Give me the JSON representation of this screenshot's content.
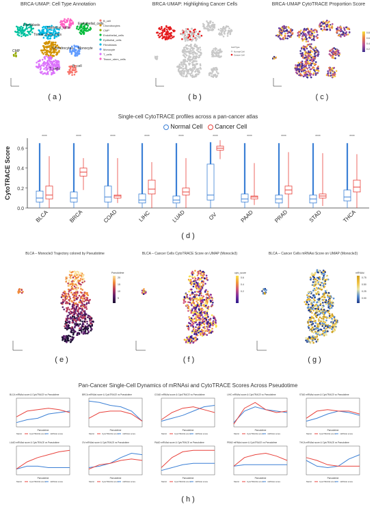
{
  "panel_a": {
    "title": "BRCA-UMAP: Cell Type Annotation",
    "label": "( a )",
    "cluster_labels": [
      "Fibroblasts",
      "Epithelial_cells",
      "Tissue_stem_cells",
      "Endothelial_cells",
      "Chondrocytes",
      "Monocyte",
      "T_cells",
      "B_cell",
      "CMP"
    ],
    "legend": [
      {
        "name": "B_cell",
        "color": "#f8766d"
      },
      {
        "name": "Chondrocytes",
        "color": "#d39200"
      },
      {
        "name": "CMP",
        "color": "#93aa00"
      },
      {
        "name": "Endothelial_cells",
        "color": "#00ba38"
      },
      {
        "name": "Epithelial_cells",
        "color": "#00c19f"
      },
      {
        "name": "Fibroblasts",
        "color": "#00b9e3"
      },
      {
        "name": "Monocyte",
        "color": "#619cff"
      },
      {
        "name": "T_cells",
        "color": "#db72fb"
      },
      {
        "name": "Tissue_stem_cells",
        "color": "#ff61c3"
      }
    ]
  },
  "panel_b": {
    "title": "BRCA-UMAP: Highlighting Cancer Cells",
    "label": "( b )",
    "legend_title": "Cell Type",
    "legend": [
      {
        "name": "Normal Cell",
        "color": "#cccccc"
      },
      {
        "name": "Cancer Cell",
        "color": "#e41a1c"
      }
    ]
  },
  "panel_c": {
    "title": "BRCA-UMAP CytoTRACE Proportion Score",
    "label": "( c )",
    "scale_ticks": [
      "0.8",
      "0.6",
      "0.4",
      "0.2"
    ]
  },
  "panel_d": {
    "title": "Single-cell CytoTRACE profiles across a pan-cancer atlas",
    "label": "( d )",
    "legend": [
      {
        "name": "Normal Cell",
        "color": "#3a7fd5"
      },
      {
        "name": "Cancer Cell",
        "color": "#e8413b"
      }
    ],
    "chart_data": {
      "type": "box",
      "ylabel": "CytoTRACE Score",
      "ylim": [
        0,
        0.7
      ],
      "yticks": [
        "0.0",
        "0.2",
        "0.4",
        "0.6"
      ],
      "categories": [
        "BLCA",
        "BRCA",
        "COAD",
        "LIHC",
        "LUAD",
        "OV",
        "PAAD",
        "PRAD",
        "STAD",
        "THCA"
      ],
      "significance": "****",
      "series": [
        {
          "name": "Normal Cell",
          "color": "#3a7fd5",
          "boxes": [
            [
              0.0,
              0.06,
              0.1,
              0.17,
              0.65
            ],
            [
              0.0,
              0.06,
              0.1,
              0.16,
              0.65
            ],
            [
              0.0,
              0.06,
              0.11,
              0.22,
              0.65
            ],
            [
              0.0,
              0.05,
              0.08,
              0.14,
              0.65
            ],
            [
              0.0,
              0.05,
              0.08,
              0.12,
              0.65
            ],
            [
              0.0,
              0.08,
              0.13,
              0.44,
              0.66
            ],
            [
              0.0,
              0.06,
              0.09,
              0.14,
              0.65
            ],
            [
              0.0,
              0.05,
              0.09,
              0.13,
              0.65
            ],
            [
              0.0,
              0.05,
              0.09,
              0.13,
              0.65
            ],
            [
              0.0,
              0.07,
              0.11,
              0.18,
              0.65
            ]
          ]
        },
        {
          "name": "Cancer Cell",
          "color": "#e8413b",
          "boxes": [
            [
              0.0,
              0.09,
              0.13,
              0.22,
              0.52
            ],
            [
              0.18,
              0.32,
              0.36,
              0.4,
              0.5
            ],
            [
              0.05,
              0.1,
              0.12,
              0.13,
              0.5
            ],
            [
              0.0,
              0.14,
              0.19,
              0.28,
              0.46
            ],
            [
              0.0,
              0.13,
              0.16,
              0.2,
              0.5
            ],
            [
              0.49,
              0.58,
              0.6,
              0.62,
              0.68
            ],
            [
              0.03,
              0.09,
              0.11,
              0.12,
              0.45
            ],
            [
              0.0,
              0.14,
              0.18,
              0.22,
              0.56
            ],
            [
              0.02,
              0.1,
              0.12,
              0.14,
              0.55
            ],
            [
              0.0,
              0.16,
              0.21,
              0.28,
              0.54
            ]
          ]
        }
      ]
    }
  },
  "panel_e": {
    "title": "BLCA – Monocle3 Trajectory colored by Pseudotime",
    "label": "( e )",
    "legend_title": "Pseudotime",
    "scale_ticks": [
      "20",
      "15",
      "10",
      "5"
    ]
  },
  "panel_f": {
    "title": "BLCA – Cancer Cells CytoTRACE Score on UMAP (Monocle3)",
    "label": "( f )",
    "legend_title": "cyto_score",
    "scale_ticks": [
      "0.6",
      "0.4",
      "0.2"
    ]
  },
  "panel_g": {
    "title": "BLCA – Cancer Cells mRNAsi Score on UMAP (Monocle3)",
    "label": "( g )",
    "legend_title": "mRNAsi",
    "scale_ticks": [
      "0.75",
      "0.50",
      "0.25",
      "0.00"
    ]
  },
  "panel_h": {
    "title": "Pan-Cancer Single-Cell Dynamics of mRNAsi and CytoTRACE Scores Across Pseudotime",
    "label": "( h )",
    "xlabel": "Pseudotime",
    "legend_label": "Metric",
    "legend": [
      {
        "name": "CytoTRACE score",
        "color": "#e8413b"
      },
      {
        "name": "mRNAsi score",
        "color": "#3a7fd5"
      }
    ],
    "plots": [
      {
        "title": "BLCA mRNAsi score & CytoTRACE vs Pseudotime",
        "blue": [
          0.15,
          0.25,
          0.3,
          0.45,
          0.5,
          0.55
        ],
        "red": [
          0.35,
          0.55,
          0.6,
          0.65,
          0.6,
          0.5
        ]
      },
      {
        "title": "BRCA mRNAsi score & CytoTRACE vs Pseudotime",
        "blue": [
          0.9,
          0.85,
          0.75,
          0.7,
          0.55,
          0.2
        ],
        "red": [
          0.3,
          0.5,
          0.55,
          0.55,
          0.45,
          0.2
        ]
      },
      {
        "title": "COAD mRNAsi score & CytoTRACE vs Pseudotime",
        "blue": [
          0.2,
          0.3,
          0.4,
          0.55,
          0.7,
          0.75
        ],
        "red": [
          0.25,
          0.5,
          0.65,
          0.7,
          0.6,
          0.5
        ]
      },
      {
        "title": "LIHC mRNAsi score & CytoTRACE vs Pseudotime",
        "blue": [
          0.15,
          0.55,
          0.7,
          0.6,
          0.55,
          0.5
        ],
        "red": [
          0.1,
          0.65,
          0.85,
          0.6,
          0.5,
          0.55
        ]
      },
      {
        "title": "STAD mRNAsi score & CytoTRACE vs Pseudotime",
        "blue": [
          0.2,
          0.3,
          0.45,
          0.55,
          0.5,
          0.4
        ],
        "red": [
          0.3,
          0.55,
          0.6,
          0.55,
          0.55,
          0.45
        ]
      },
      {
        "title": "LUAD mRNAsi score & CytoTRACE vs Pseudotime",
        "blue": [
          0.2,
          0.3,
          0.3,
          0.25,
          0.25,
          0.25
        ],
        "red": [
          0.2,
          0.45,
          0.6,
          0.7,
          0.8,
          0.85
        ]
      },
      {
        "title": "OV mRNAsi score & CytoTRACE vs Pseudotime",
        "blue": [
          0.25,
          0.3,
          0.4,
          0.6,
          0.75,
          0.7
        ],
        "red": [
          0.2,
          0.35,
          0.4,
          0.5,
          0.55,
          0.5
        ]
      },
      {
        "title": "PAAD mRNAsi score & CytoTRACE vs Pseudotime",
        "blue": [
          0.15,
          0.25,
          0.35,
          0.4,
          0.4,
          0.4
        ],
        "red": [
          0.25,
          0.6,
          0.8,
          0.85,
          0.85,
          0.85
        ]
      },
      {
        "title": "PRAD mRNAsi score & CytoTRACE vs Pseudotime",
        "blue": [
          0.3,
          0.35,
          0.35,
          0.35,
          0.35,
          0.35
        ],
        "red": [
          0.3,
          0.6,
          0.7,
          0.75,
          0.65,
          0.5
        ]
      },
      {
        "title": "THCA mRNAsi score & CytoTRACE vs Pseudotime",
        "blue": [
          0.5,
          0.3,
          0.25,
          0.3,
          0.55,
          0.7
        ],
        "red": [
          0.6,
          0.5,
          0.35,
          0.3,
          0.3,
          0.3
        ]
      }
    ]
  }
}
